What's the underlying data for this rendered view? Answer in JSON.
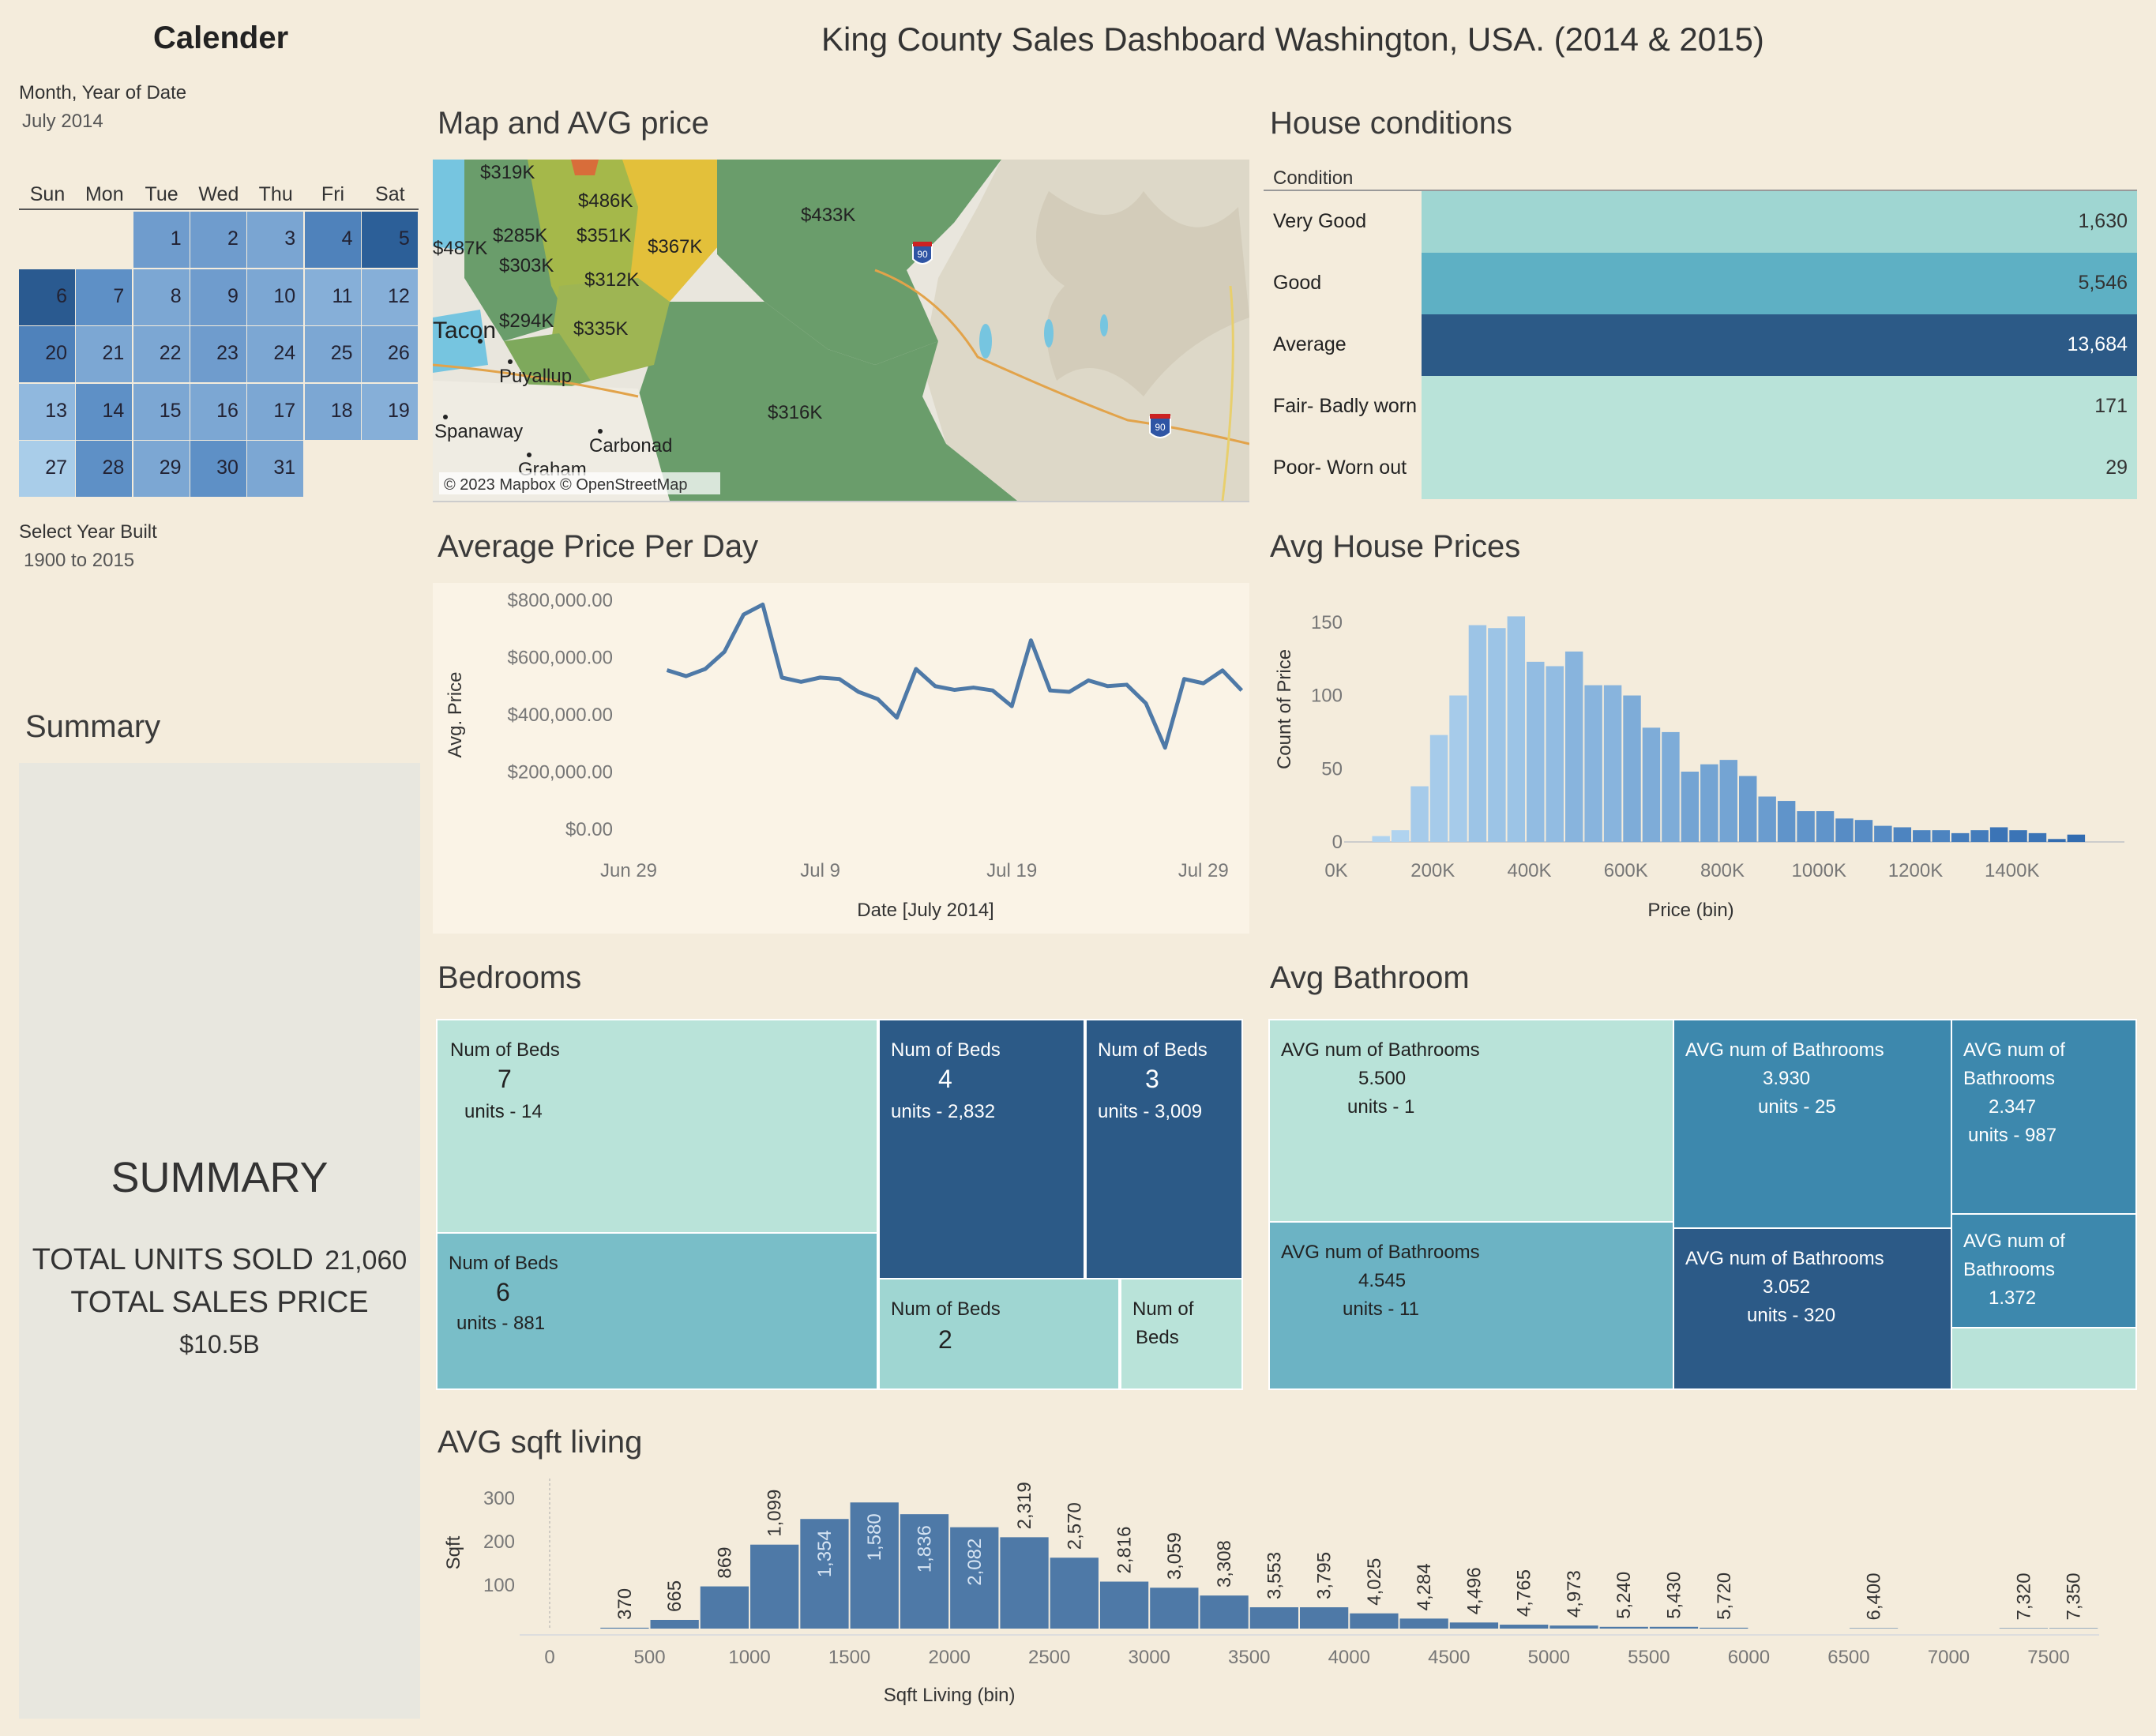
{
  "header": {
    "title": "King County Sales Dashboard Washington, USA. (2014 & 2015)"
  },
  "calendar": {
    "title": "Calender",
    "filter_label": "Month, Year of Date",
    "filter_value": "July 2014",
    "weekdays": [
      "Sun",
      "Mon",
      "Tue",
      "Wed",
      "Thu",
      "Fri",
      "Sat"
    ],
    "year_filter_label": "Select Year  Built",
    "year_filter_value": "1900 to 2015",
    "days": [
      {
        "d": "1",
        "row": 0,
        "col": 2,
        "color": "#6f9ccd"
      },
      {
        "d": "2",
        "row": 0,
        "col": 3,
        "color": "#6f9ccd"
      },
      {
        "d": "3",
        "row": 0,
        "col": 4,
        "color": "#7aa5d2"
      },
      {
        "d": "4",
        "row": 0,
        "col": 5,
        "color": "#4f82bb"
      },
      {
        "d": "5",
        "row": 0,
        "col": 6,
        "color": "#2c5f98"
      },
      {
        "d": "6",
        "row": 1,
        "col": 0,
        "color": "#2a5a90"
      },
      {
        "d": "7",
        "row": 1,
        "col": 1,
        "color": "#5e90c6"
      },
      {
        "d": "8",
        "row": 1,
        "col": 2,
        "color": "#7ca7d3"
      },
      {
        "d": "9",
        "row": 1,
        "col": 3,
        "color": "#6f9ccd"
      },
      {
        "d": "10",
        "row": 1,
        "col": 4,
        "color": "#7ca7d3"
      },
      {
        "d": "11",
        "row": 1,
        "col": 5,
        "color": "#86afd8"
      },
      {
        "d": "12",
        "row": 1,
        "col": 6,
        "color": "#86afd8"
      },
      {
        "d": "20",
        "row": 2,
        "col": 0,
        "color": "#4f82bb"
      },
      {
        "d": "21",
        "row": 2,
        "col": 1,
        "color": "#7ca7d3"
      },
      {
        "d": "22",
        "row": 2,
        "col": 2,
        "color": "#7ca7d3"
      },
      {
        "d": "23",
        "row": 2,
        "col": 3,
        "color": "#6f9ccd"
      },
      {
        "d": "24",
        "row": 2,
        "col": 4,
        "color": "#7ca7d3"
      },
      {
        "d": "25",
        "row": 2,
        "col": 5,
        "color": "#7ca7d3"
      },
      {
        "d": "26",
        "row": 2,
        "col": 6,
        "color": "#7ca7d3"
      },
      {
        "d": "13",
        "row": 3,
        "col": 0,
        "color": "#90b8de"
      },
      {
        "d": "14",
        "row": 3,
        "col": 1,
        "color": "#5e90c6"
      },
      {
        "d": "15",
        "row": 3,
        "col": 2,
        "color": "#7ca7d3"
      },
      {
        "d": "16",
        "row": 3,
        "col": 3,
        "color": "#7ca7d3"
      },
      {
        "d": "17",
        "row": 3,
        "col": 4,
        "color": "#7ca7d3"
      },
      {
        "d": "18",
        "row": 3,
        "col": 5,
        "color": "#7ca7d3"
      },
      {
        "d": "19",
        "row": 3,
        "col": 6,
        "color": "#86afd8"
      },
      {
        "d": "27",
        "row": 4,
        "col": 0,
        "color": "#a9cde9"
      },
      {
        "d": "28",
        "row": 4,
        "col": 1,
        "color": "#5e90c6"
      },
      {
        "d": "29",
        "row": 4,
        "col": 2,
        "color": "#7ca7d3"
      },
      {
        "d": "30",
        "row": 4,
        "col": 3,
        "color": "#5e90c6"
      },
      {
        "d": "31",
        "row": 4,
        "col": 4,
        "color": "#7ca7d3"
      }
    ]
  },
  "summary": {
    "section_title": "Summary",
    "heading": "SUMMARY",
    "units_label": "TOTAL UNITS SOLD",
    "units_value": "21,060",
    "price_label": "TOTAL SALES PRICE",
    "price_value": "$10.5B"
  },
  "map": {
    "title": "Map and AVG price",
    "attribution": "© 2023 Mapbox © OpenStreetMap",
    "price_labels": [
      "$319K",
      "$486K",
      "$487K",
      "$285K",
      "$351K",
      "$367K",
      "$433K",
      "$303K",
      "$312K",
      "$294K",
      "$335K",
      "$316K"
    ],
    "place_labels": [
      "Tacon",
      "Puyallup",
      "Spanaway",
      "Carbonad",
      "Graham"
    ],
    "highway": "90"
  },
  "conditions": {
    "title": "House conditions",
    "column_header": "Condition",
    "rows": [
      {
        "label": "Very Good",
        "value": "1,630",
        "color": "#9fd6d2"
      },
      {
        "label": "Good",
        "value": "5,546",
        "color": "#5eb0c4"
      },
      {
        "label": "Average",
        "value": "13,684",
        "color": "#2c5a87"
      },
      {
        "label": "Fair- Badly worn",
        "value": "171",
        "color": "#b9e3d9"
      },
      {
        "label": "Poor- Worn out",
        "value": "29",
        "color": "#b9e3d9"
      }
    ]
  },
  "chart_data": [
    {
      "type": "line",
      "title": "Average Price Per Day",
      "xlabel": "Date [July 2014]",
      "ylabel": "Avg. Price",
      "ylim": [
        0,
        800000
      ],
      "y_ticks": [
        "$0.00",
        "$200,000.00",
        "$400,000.00",
        "$600,000.00",
        "$800,000.00"
      ],
      "x_ticks": [
        "Jun 29",
        "Jul 9",
        "Jul 19",
        "Jul 29"
      ],
      "x_tick_days": [
        0,
        10,
        20,
        30
      ],
      "x_days": [
        1,
        2,
        3,
        4,
        5,
        6,
        7,
        8,
        9,
        10,
        11,
        12,
        13,
        14,
        15,
        16,
        17,
        18,
        19,
        20,
        21,
        22,
        23,
        24,
        25,
        26,
        27,
        28,
        29,
        30,
        31
      ],
      "values": [
        556000,
        535000,
        560000,
        620000,
        750000,
        785000,
        530000,
        515000,
        530000,
        525000,
        480000,
        455000,
        390000,
        560000,
        500000,
        487000,
        495000,
        485000,
        430000,
        660000,
        485000,
        480000,
        520000,
        500000,
        505000,
        440000,
        285000,
        525000,
        510000,
        555000,
        485000
      ],
      "color": "#4e79a7"
    },
    {
      "type": "bar",
      "title": "Avg House Prices",
      "xlabel": "Price (bin)",
      "ylabel": "Count of Price",
      "ylim": [
        0,
        165
      ],
      "y_ticks": [
        0,
        50,
        100,
        150
      ],
      "x_ticks": [
        "0K",
        "200K",
        "400K",
        "600K",
        "800K",
        "1000K",
        "1200K",
        "1400K"
      ],
      "bin_width_k": 40,
      "bin_starts_k": [
        40,
        80,
        120,
        160,
        200,
        240,
        280,
        320,
        360,
        400,
        440,
        480,
        520,
        560,
        600,
        640,
        680,
        720,
        760,
        800,
        840,
        880,
        920,
        960,
        1000,
        1040,
        1080,
        1120,
        1160,
        1200,
        1240,
        1280,
        1320,
        1360,
        1400,
        1440,
        1480
      ],
      "values": [
        4,
        8,
        38,
        73,
        100,
        148,
        146,
        154,
        123,
        120,
        130,
        107,
        107,
        100,
        78,
        75,
        48,
        53,
        56,
        45,
        31,
        28,
        21,
        21,
        16,
        15,
        11,
        10,
        8,
        8,
        6,
        8,
        10,
        8,
        6,
        2,
        5
      ]
    },
    {
      "type": "bar",
      "title": "AVG sqft living",
      "xlabel": "Sqft Living (bin)",
      "ylabel": "Sqft",
      "ylim": [
        0,
        345
      ],
      "y_ticks": [
        100,
        200,
        300
      ],
      "x_ticks": [
        "0",
        "500",
        "1000",
        "1500",
        "2000",
        "2500",
        "3000",
        "3500",
        "4000",
        "4500",
        "5000",
        "5500",
        "6000",
        "6500",
        "7000",
        "7500"
      ],
      "bin_width": 250,
      "bin_starts": [
        250,
        500,
        750,
        1000,
        1250,
        1500,
        1750,
        2000,
        2250,
        2500,
        2750,
        3000,
        3250,
        3500,
        3750,
        4000,
        4250,
        4500,
        4750,
        5000,
        5250,
        5500,
        5750,
        6500,
        7250,
        7500
      ],
      "values": [
        2,
        20,
        97,
        193,
        252,
        290,
        263,
        233,
        210,
        163,
        108,
        94,
        76,
        49,
        49,
        35,
        23,
        14,
        9,
        7,
        4,
        4,
        2,
        1,
        1,
        1
      ],
      "labels": [
        "370",
        "665",
        "869",
        "1,099",
        "1,354",
        "1,580",
        "1,836",
        "2,082",
        "2,319",
        "2,570",
        "2,816",
        "3,059",
        "3,308",
        "3,553",
        "3,795",
        "4,025",
        "4,284",
        "4,496",
        "4,765",
        "4,973",
        "5,240",
        "5,430",
        "5,720",
        "6,400",
        "7,320",
        "7,350"
      ]
    }
  ],
  "bedrooms": {
    "title": "Bedrooms",
    "label": "Num of Beds",
    "tiles": [
      {
        "beds": "7",
        "units": "14",
        "color": "#b9e3d9",
        "text": "#222"
      },
      {
        "beds": "4",
        "units": "2,832",
        "color": "#2c5a87",
        "text": "#fff"
      },
      {
        "beds": "3",
        "units": "3,009",
        "color": "#2c5a87",
        "text": "#fff"
      },
      {
        "beds": "6",
        "units": "881",
        "color": "#79bec8",
        "text": "#222"
      },
      {
        "beds": "2",
        "units": "",
        "color": "#9fd6d2",
        "text": "#222"
      },
      {
        "beds": "",
        "units": "",
        "color": "#b9e3d9",
        "text": "#222"
      }
    ],
    "units_prefix": "units",
    "small_label_1": "Num of",
    "small_label_2": "Beds"
  },
  "bathrooms": {
    "title": "Avg Bathroom",
    "label": "AVG num of Bathrooms",
    "label_1": "AVG num of",
    "label_2": "Bathrooms",
    "units_prefix": "units",
    "tiles": [
      {
        "avg": "5.500",
        "units": "1",
        "color": "#b9e3d9",
        "text": "#222"
      },
      {
        "avg": "3.930",
        "units": "25",
        "color": "#3d88ad",
        "text": "#fff"
      },
      {
        "avg": "2.347",
        "units": "987",
        "color": "#3d88ad",
        "text": "#fff"
      },
      {
        "avg": "4.545",
        "units": "11",
        "color": "#6cb3c4",
        "text": "#222"
      },
      {
        "avg": "3.052",
        "units": "320",
        "color": "#2c5a87",
        "text": "#fff"
      },
      {
        "avg": "1.372",
        "units": "",
        "color": "#3d88ad",
        "text": "#fff"
      }
    ]
  }
}
